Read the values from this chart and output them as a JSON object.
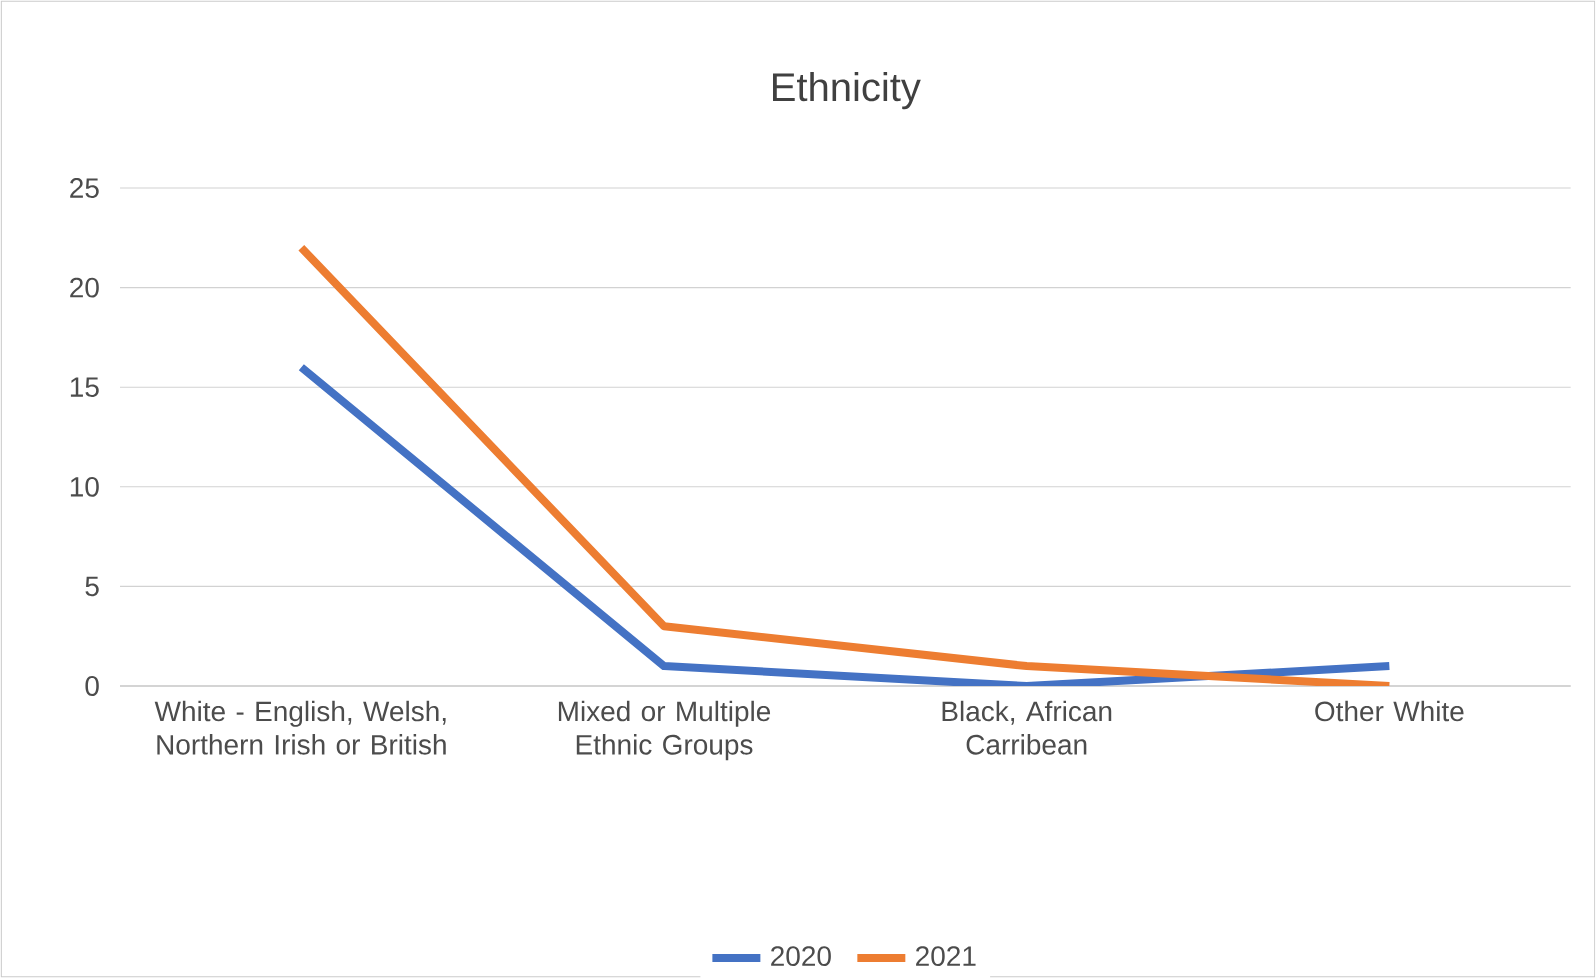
{
  "chart_data": {
    "type": "line",
    "title": "Ethnicity",
    "categories": [
      "White - English, Welsh, Northern Irish or British",
      "Mixed or Multiple Ethnic Groups",
      "Black, African Carribean",
      "Other White"
    ],
    "series": [
      {
        "name": "2020",
        "color": "#4472c4",
        "values": [
          16,
          1,
          0,
          1
        ]
      },
      {
        "name": "2021",
        "color": "#ed7d31",
        "values": [
          22,
          3,
          1,
          0
        ]
      }
    ],
    "ylim": [
      0,
      25
    ],
    "yticks": [
      0,
      5,
      10,
      15,
      20,
      25
    ],
    "grid": "y",
    "legend": "bottom",
    "marker": "none",
    "line_style": "solid"
  }
}
